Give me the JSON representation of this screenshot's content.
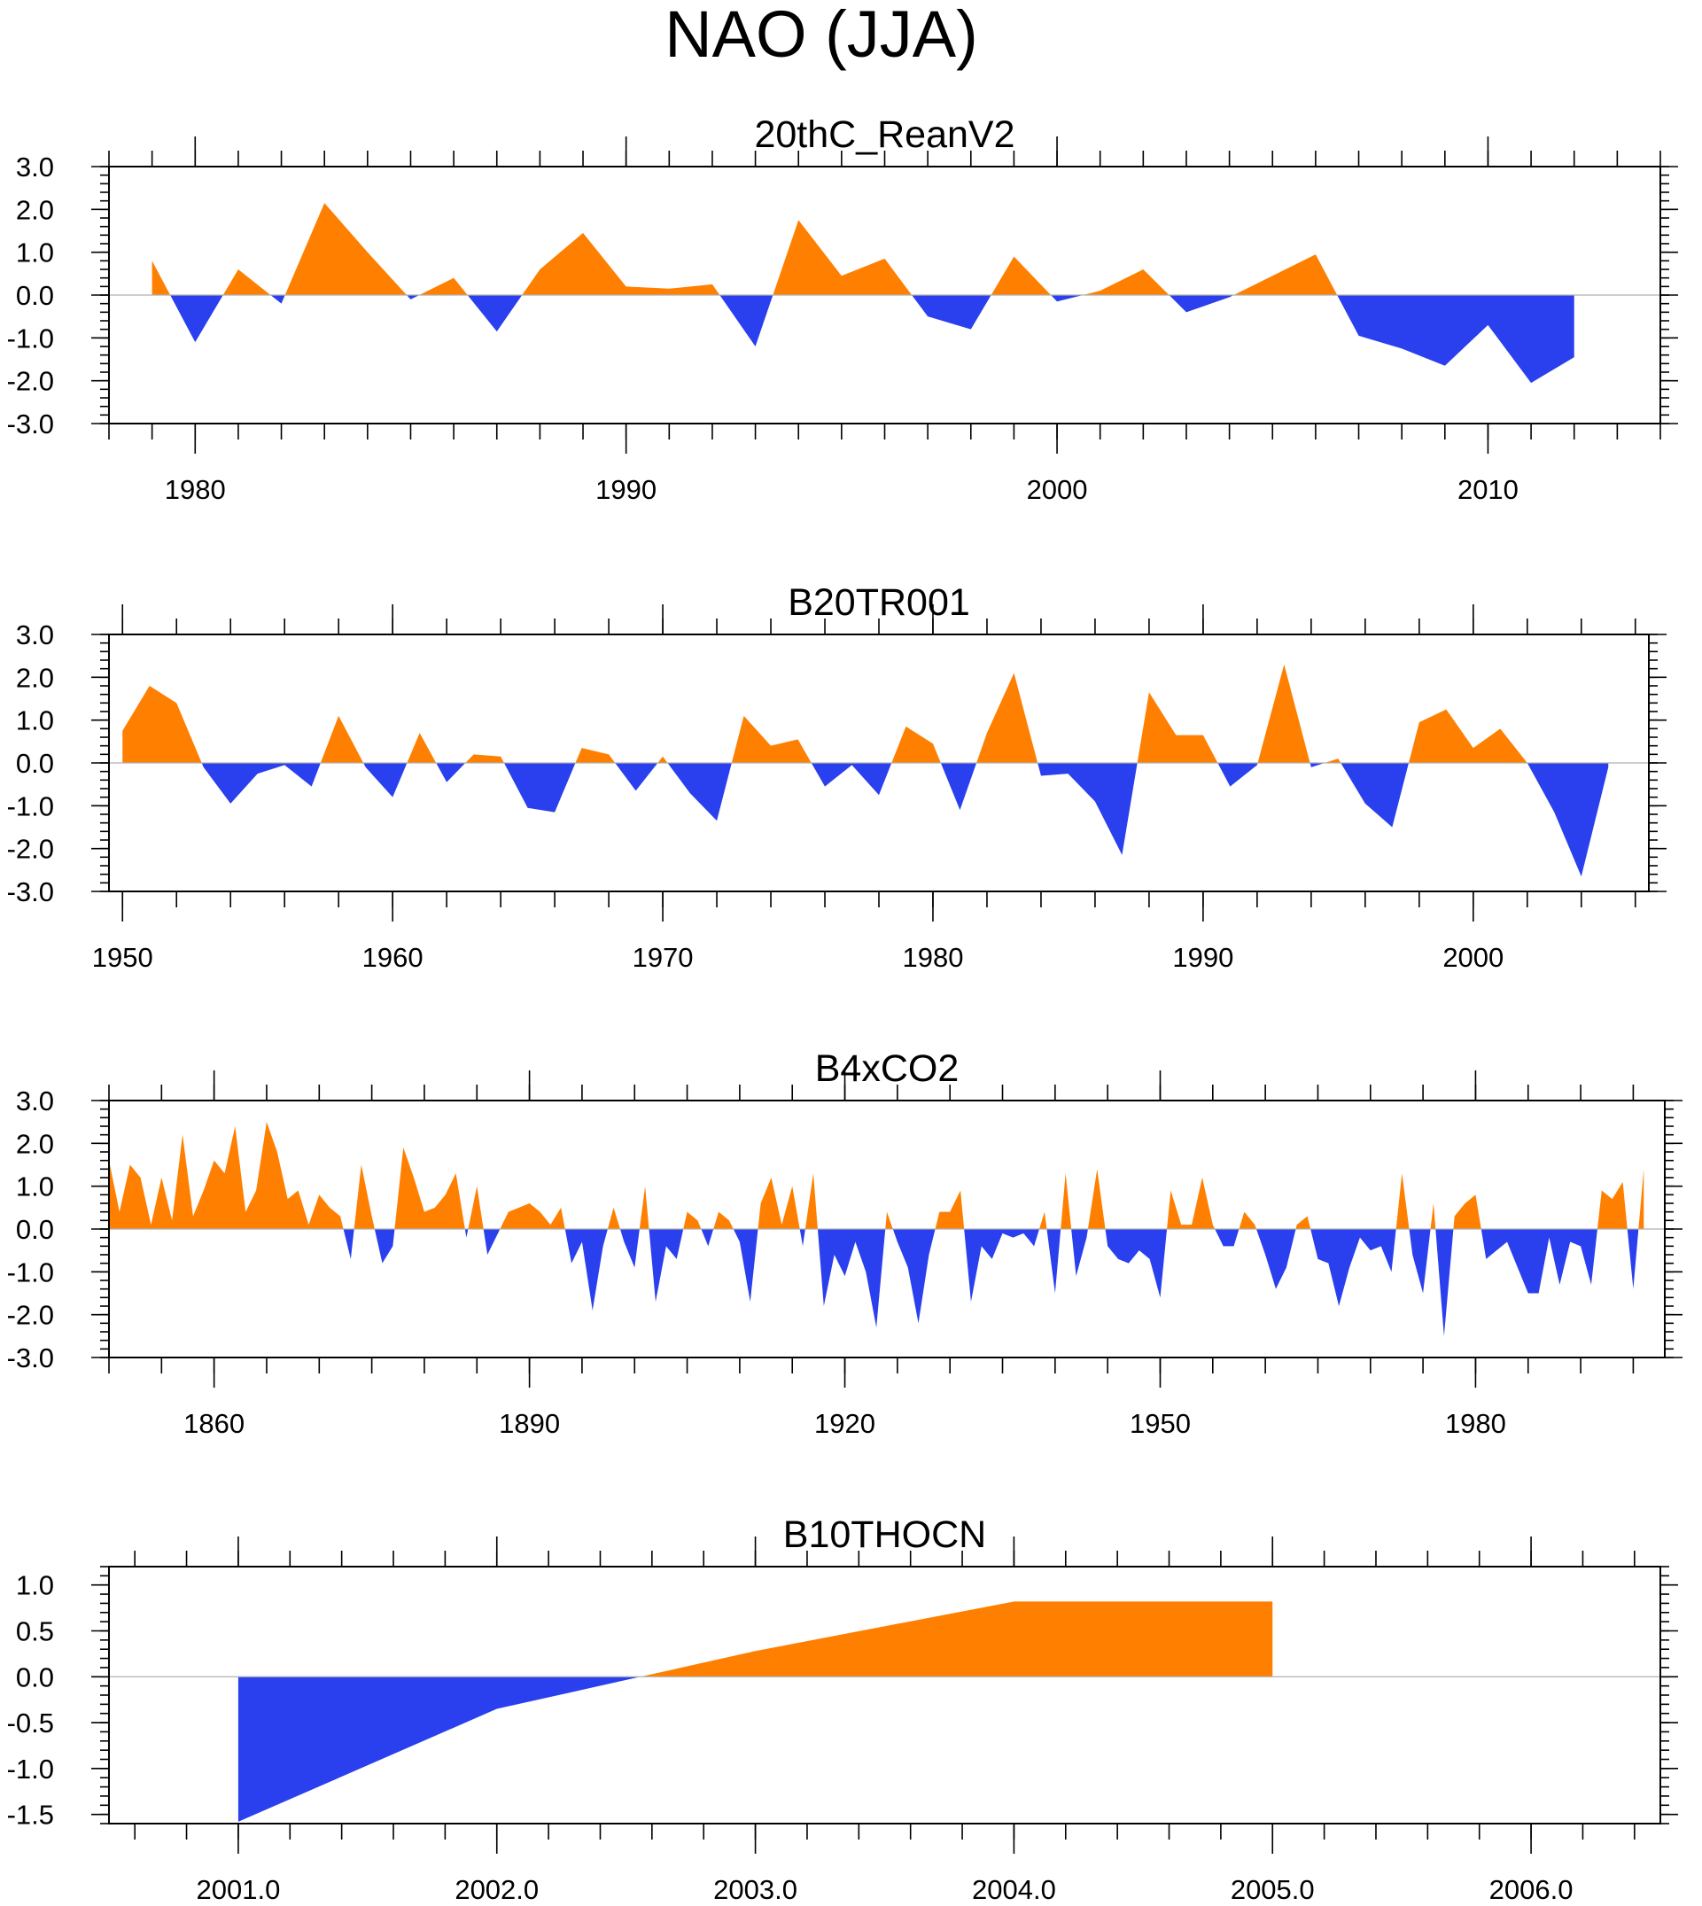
{
  "title": "NAO (JJA)",
  "colors": {
    "positive": "#ff7f00",
    "negative": "#2a40ee",
    "frame": "#000000",
    "zero_line": "#b0b0b0"
  },
  "chart_data": [
    {
      "type": "area",
      "title": "20thC_ReanV2",
      "xlim": [
        1978,
        2014
      ],
      "ylim": [
        -3.0,
        3.0
      ],
      "ytick_values": [
        3.0,
        2.0,
        1.0,
        0.0,
        -1.0,
        -2.0,
        -3.0
      ],
      "ytick_labels": [
        "3.0",
        "2.0",
        "1.0",
        "0.0",
        "-1.0",
        "-2.0",
        "-3.0"
      ],
      "xtick_values": [
        1980,
        1990,
        2000,
        2010
      ],
      "xtick_labels": [
        "1980",
        "1990",
        "2000",
        "2010"
      ],
      "xminor_step": 1,
      "x": [
        1979,
        1980,
        1981,
        1982,
        1983,
        1984,
        1985,
        1986,
        1987,
        1988,
        1989,
        1990,
        1991,
        1992,
        1993,
        1994,
        1995,
        1996,
        1997,
        1998,
        1999,
        2000,
        2001,
        2002,
        2003,
        2004,
        2005,
        2006,
        2007,
        2008,
        2009,
        2010,
        2011,
        2012
      ],
      "values": [
        0.8,
        -1.1,
        0.6,
        -0.2,
        2.15,
        1.0,
        -0.1,
        0.4,
        -0.85,
        0.6,
        1.45,
        0.2,
        0.15,
        0.25,
        -1.2,
        1.75,
        0.45,
        0.85,
        -0.5,
        -0.8,
        0.9,
        -0.15,
        0.1,
        0.6,
        -0.4,
        -0.05,
        0.45,
        0.95,
        -0.95,
        -1.25,
        -1.65,
        -0.7,
        -2.05,
        -1.45
      ]
    },
    {
      "type": "area",
      "title": "B20TR001",
      "xlim": [
        1949.5,
        2006.5
      ],
      "ylim": [
        -3.0,
        3.0
      ],
      "ytick_values": [
        3.0,
        2.0,
        1.0,
        0.0,
        -1.0,
        -2.0,
        -3.0
      ],
      "ytick_labels": [
        "3.0",
        "2.0",
        "1.0",
        "0.0",
        "-1.0",
        "-2.0",
        "-3.0"
      ],
      "xtick_values": [
        1950,
        1960,
        1970,
        1980,
        1990,
        2000
      ],
      "xtick_labels": [
        "1950",
        "1960",
        "1970",
        "1980",
        "1990",
        "2000"
      ],
      "xminor_step": 2,
      "x": [
        1950,
        1951,
        1952,
        1953,
        1954,
        1955,
        1956,
        1957,
        1958,
        1959,
        1960,
        1961,
        1962,
        1963,
        1964,
        1965,
        1966,
        1967,
        1968,
        1969,
        1970,
        1971,
        1972,
        1973,
        1974,
        1975,
        1976,
        1977,
        1978,
        1979,
        1980,
        1981,
        1982,
        1983,
        1984,
        1985,
        1986,
        1987,
        1988,
        1989,
        1990,
        1991,
        1992,
        1993,
        1994,
        1995,
        1996,
        1997,
        1998,
        1999,
        2000,
        2001,
        2002,
        2003,
        2004,
        2005
      ],
      "values": [
        0.75,
        1.8,
        1.4,
        -0.1,
        -0.95,
        -0.25,
        -0.05,
        -0.55,
        1.1,
        -0.1,
        -0.8,
        0.7,
        -0.45,
        0.2,
        0.15,
        -1.05,
        -1.15,
        0.35,
        0.2,
        -0.65,
        0.15,
        -0.7,
        -1.35,
        1.1,
        0.4,
        0.55,
        -0.55,
        -0.05,
        -0.75,
        0.85,
        0.45,
        -1.1,
        0.7,
        2.1,
        -0.3,
        -0.25,
        -0.9,
        -2.15,
        1.65,
        0.65,
        0.65,
        -0.55,
        -0.05,
        2.3,
        -0.1,
        0.1,
        -0.95,
        -1.5,
        0.95,
        1.25,
        0.35,
        0.8,
        0.0,
        -1.15,
        -2.65,
        -0.1
      ]
    },
    {
      "type": "area",
      "title": "B4xCO2",
      "xlim": [
        1850,
        1998
      ],
      "ylim": [
        -3.0,
        3.0
      ],
      "ytick_values": [
        3.0,
        2.0,
        1.0,
        0.0,
        -1.0,
        -2.0,
        -3.0
      ],
      "ytick_labels": [
        "3.0",
        "2.0",
        "1.0",
        "0.0",
        "-1.0",
        "-2.0",
        "-3.0"
      ],
      "xtick_values": [
        1860,
        1890,
        1920,
        1950,
        1980
      ],
      "xtick_labels": [
        "1860",
        "1890",
        "1920",
        "1950",
        "1980"
      ],
      "xminor_step": 5,
      "x_start": 1850,
      "x_step": 1,
      "values": [
        1.6,
        0.4,
        1.5,
        1.2,
        0.1,
        1.2,
        0.2,
        2.2,
        0.3,
        0.9,
        1.6,
        1.3,
        2.4,
        0.4,
        0.9,
        2.5,
        1.8,
        0.7,
        0.9,
        0.1,
        0.8,
        0.5,
        0.3,
        -0.7,
        1.5,
        0.3,
        -0.8,
        -0.4,
        1.9,
        1.2,
        0.4,
        0.5,
        0.8,
        1.3,
        -0.2,
        1.0,
        -0.6,
        -0.1,
        0.4,
        0.5,
        0.6,
        0.4,
        0.1,
        0.5,
        -0.8,
        -0.3,
        -1.9,
        -0.4,
        0.5,
        -0.3,
        -0.9,
        1.0,
        -1.7,
        -0.4,
        -0.7,
        0.4,
        0.2,
        -0.4,
        0.4,
        0.2,
        -0.3,
        -1.7,
        0.6,
        1.2,
        0.1,
        1.0,
        -0.4,
        1.3,
        -1.8,
        -0.6,
        -1.1,
        -0.3,
        -1.0,
        -2.3,
        0.4,
        -0.3,
        -0.9,
        -2.2,
        -0.6,
        0.4,
        0.4,
        0.9,
        -1.7,
        -0.4,
        -0.7,
        -0.1,
        -0.2,
        -0.1,
        -0.4,
        0.4,
        -1.5,
        1.3,
        -1.1,
        -0.2,
        1.4,
        -0.4,
        -0.7,
        -0.8,
        -0.5,
        -0.7,
        -1.6,
        0.9,
        0.1,
        0.1,
        1.2,
        0.1,
        -0.4,
        -0.4,
        0.4,
        0.1,
        -0.6,
        -1.4,
        -0.9,
        0.1,
        0.3,
        -0.7,
        -0.8,
        -1.8,
        -0.9,
        -0.2,
        -0.5,
        -0.4,
        -1.0,
        1.3,
        -0.6,
        -1.5,
        0.6,
        -2.5,
        0.3,
        0.6,
        0.8,
        -0.7,
        -0.5,
        -0.3,
        -0.9,
        -1.5,
        -1.5,
        -0.2,
        -1.3,
        -0.3,
        -0.4,
        -1.3,
        0.9,
        0.7,
        1.1,
        -1.4,
        1.4
      ]
    },
    {
      "type": "area",
      "title": "B10THOCN",
      "xlim": [
        2000.5,
        2006.5
      ],
      "ylim": [
        -1.6,
        1.2
      ],
      "ytick_values": [
        1.0,
        0.5,
        0.0,
        -0.5,
        -1.0,
        -1.5
      ],
      "ytick_labels": [
        "1.0",
        "0.5",
        "0.0",
        "-0.5",
        "-1.0",
        "-1.5"
      ],
      "xtick_values": [
        2001,
        2002,
        2003,
        2004,
        2005,
        2006
      ],
      "xtick_labels": [
        "2001.0",
        "2002.0",
        "2003.0",
        "2004.0",
        "2005.0",
        "2006.0"
      ],
      "xminor_step": 0.2,
      "x": [
        2001,
        2002,
        2003,
        2004,
        2005
      ],
      "values": [
        -1.58,
        -0.35,
        0.28,
        0.82,
        0.82
      ]
    }
  ]
}
